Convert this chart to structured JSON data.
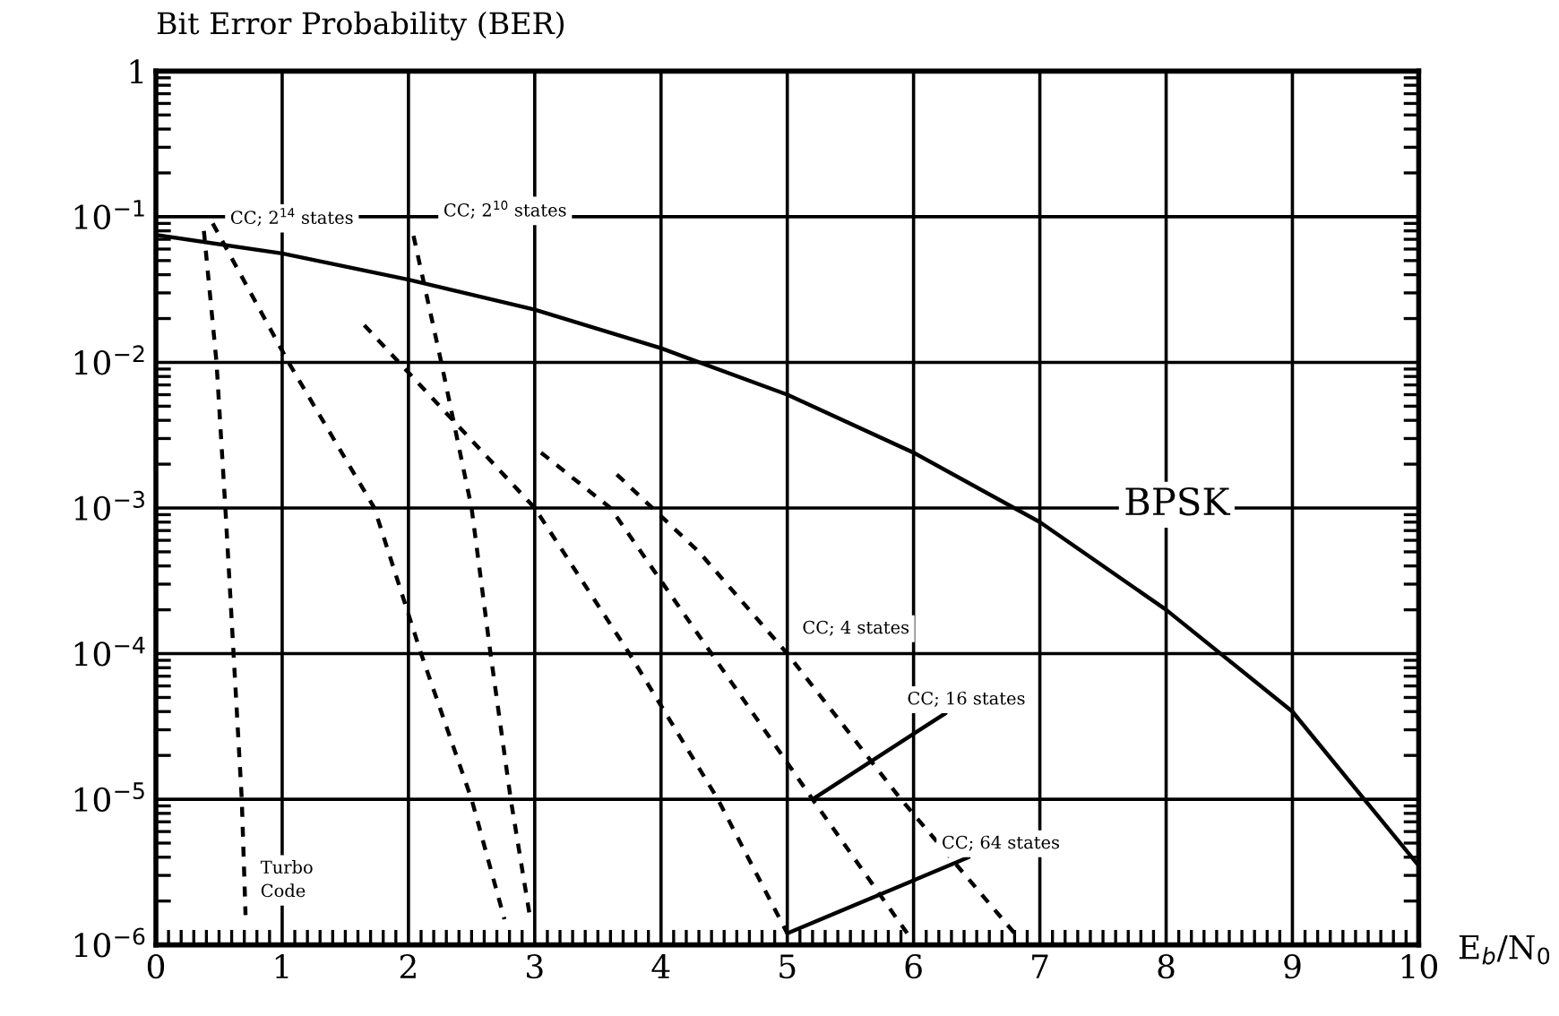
{
  "chart_data": {
    "type": "line",
    "title": "Bit Error Probability (BER)",
    "xlabel": "E$_{b}$/N$_{0}$",
    "log": "y",
    "grid": true,
    "xlim": [
      0,
      10
    ],
    "xticks": [
      0,
      1,
      2,
      3,
      4,
      5,
      6,
      7,
      8,
      9,
      10
    ],
    "ylim": [
      1e-06,
      1
    ],
    "yticks": [
      {
        "value": 1e-06,
        "label": "10$^{−6}$"
      },
      {
        "value": 1e-05,
        "label": "10$^{−5}$"
      },
      {
        "value": 0.0001,
        "label": "10$^{−4}$"
      },
      {
        "value": 0.001,
        "label": "10$^{−3}$"
      },
      {
        "value": 0.01,
        "label": "10$^{−2}$"
      },
      {
        "value": 0.1,
        "label": "10$^{−1}$"
      },
      {
        "value": 1,
        "label": "1"
      }
    ],
    "series": [
      {
        "name": "BPSK",
        "color": "#000000",
        "line_style": "solid",
        "x": [
          0,
          1,
          2,
          3,
          4,
          5,
          6,
          7,
          8,
          9,
          10
        ],
        "values": [
          0.075,
          0.056,
          0.037,
          0.023,
          0.0125,
          0.006,
          0.0024,
          0.0008,
          0.0002,
          4e-05,
          3.5e-06
        ]
      },
      {
        "name": "Turbo\nCode",
        "color": "#000000",
        "line_style": "dashed",
        "x": [
          0.38,
          0.48,
          0.55,
          0.68,
          0.71
        ],
        "values": [
          0.08,
          0.01,
          0.001,
          1e-05,
          1.6e-06
        ]
      },
      {
        "name": "CC; 2$^{14}$ states",
        "color": "#000000",
        "line_style": "dashed",
        "x": [
          0.45,
          1.05,
          1.73,
          2.1,
          2.5,
          2.76
        ],
        "values": [
          0.09,
          0.01,
          0.001,
          0.0001,
          1e-05,
          1.5e-06
        ]
      },
      {
        "name": "CC; 2$^{10}$ states",
        "color": "#000000",
        "line_style": "dashed",
        "x": [
          2.04,
          2.26,
          2.5,
          2.65,
          2.81,
          2.96
        ],
        "values": [
          0.074,
          0.01,
          0.001,
          0.0001,
          1e-05,
          1.6e-06
        ]
      },
      {
        "name": "CC; 64 states",
        "color": "#000000",
        "line_style": "dashed",
        "x": [
          1.65,
          3.0,
          3.75,
          4.45,
          5.0
        ],
        "values": [
          0.018,
          0.001,
          0.0001,
          1e-05,
          1.2e-06
        ]
      },
      {
        "name": "CC; 16 states",
        "color": "#000000",
        "line_style": "dashed",
        "x": [
          3.05,
          3.6,
          4.4,
          5.2,
          5.95
        ],
        "values": [
          0.0024,
          0.001,
          0.0001,
          1e-05,
          1.2e-06
        ]
      },
      {
        "name": "CC; 4 states",
        "color": "#000000",
        "line_style": "dashed",
        "x": [
          3.65,
          4.3,
          5.0,
          5.9,
          6.8
        ],
        "values": [
          0.0017,
          0.0005,
          0.0001,
          1e-05,
          1.2e-06
        ]
      }
    ]
  }
}
